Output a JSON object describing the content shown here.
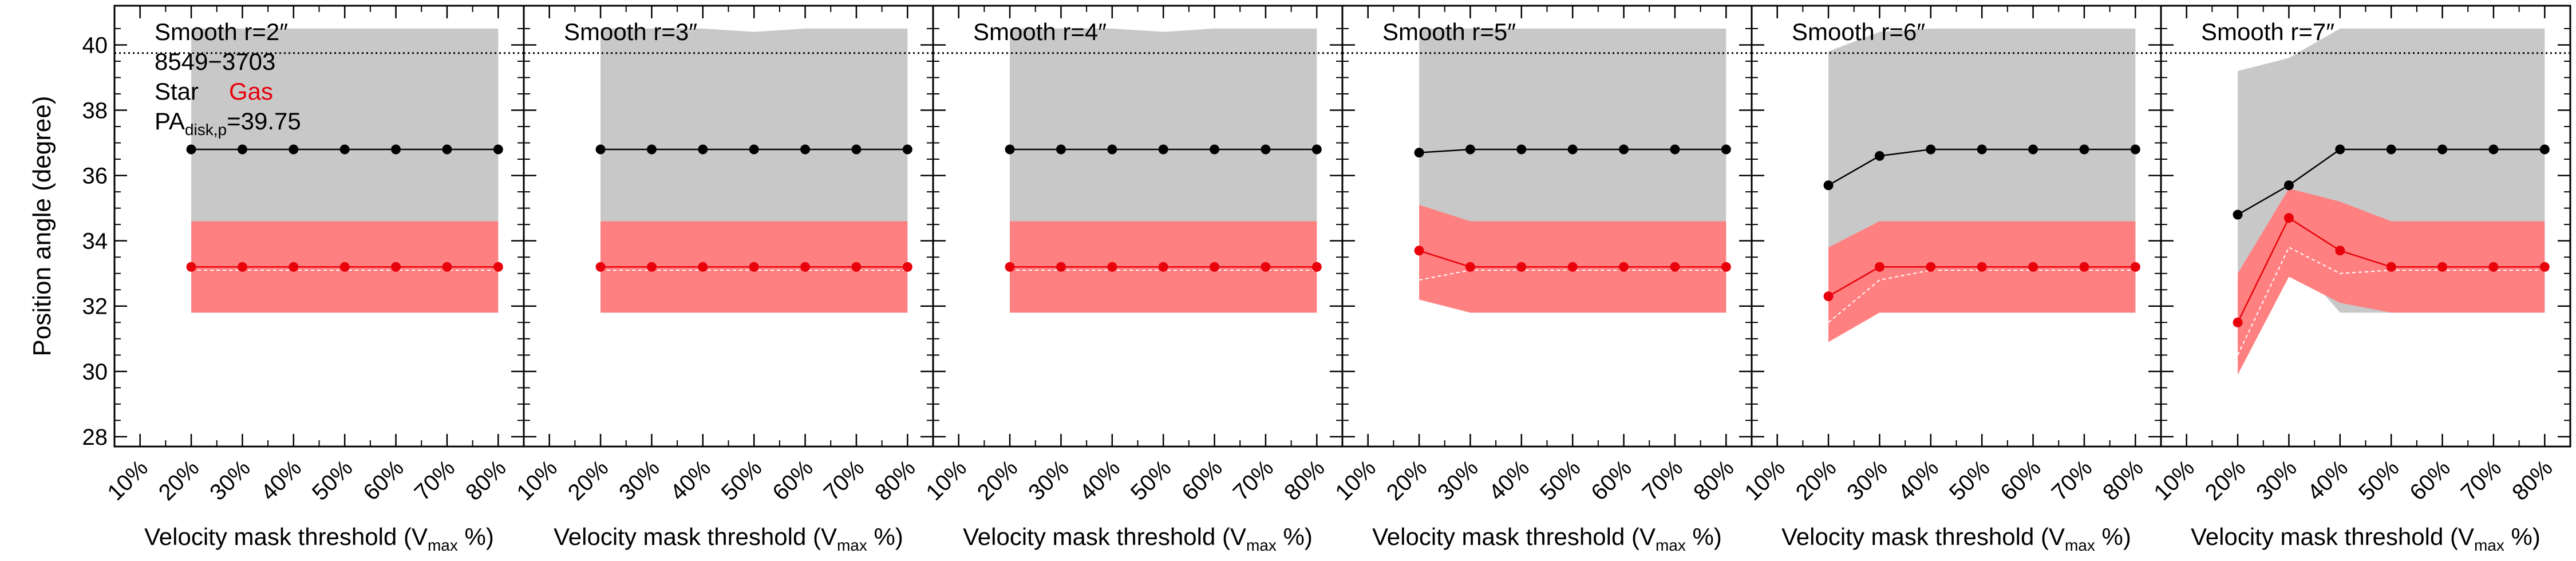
{
  "figure": {
    "ylabel": "Position angle (degree)",
    "xlabel_main": "Velocity mask threshold (V",
    "xlabel_sub": "max",
    "xlabel_tail": " %)",
    "legend": {
      "galaxy_id": "8549−3703",
      "star_label": "Star",
      "gas_label": "Gas",
      "pa_prefix": "PA",
      "pa_sub": "disk,p",
      "pa_value": "=39.75"
    },
    "x_tick_labels": [
      "10%",
      "20%",
      "30%",
      "40%",
      "50%",
      "60%",
      "70%",
      "80%"
    ],
    "y_tick_labels": [
      "28",
      "30",
      "32",
      "34",
      "36",
      "38",
      "40"
    ]
  },
  "colors": {
    "star": "#000000",
    "gas": "#e8000b",
    "star_band": "#c8c8c8",
    "gas_band": "#ff8080",
    "reference_line": "#000000",
    "gas_median_line": "#ffffff"
  },
  "chart_data": {
    "type": "line",
    "xlabel": "Velocity mask threshold (Vmax %)",
    "ylabel": "Position angle (degree)",
    "xlim": [
      5,
      85
    ],
    "ylim": [
      27.7,
      41.2
    ],
    "x_ticks": [
      10,
      20,
      30,
      40,
      50,
      60,
      70,
      80
    ],
    "y_ticks": [
      28,
      30,
      32,
      34,
      36,
      38,
      40
    ],
    "reference_line": {
      "y": 39.75,
      "style": "dotted",
      "label": "PA disk,p = 39.75"
    },
    "x": [
      20,
      30,
      40,
      50,
      60,
      70,
      80
    ],
    "panels": [
      {
        "title": "Smooth r=2″",
        "series": [
          {
            "name": "Star",
            "values": [
              36.8,
              36.8,
              36.8,
              36.8,
              36.8,
              36.8,
              36.8
            ]
          },
          {
            "name": "Gas",
            "values": [
              33.2,
              33.2,
              33.2,
              33.2,
              33.2,
              33.2,
              33.2
            ]
          }
        ],
        "star_band": {
          "lower": [
            31.8,
            31.8,
            31.8,
            31.8,
            31.8,
            31.8,
            31.8
          ],
          "upper": [
            40.5,
            40.5,
            40.5,
            40.5,
            40.5,
            40.5,
            40.5
          ]
        },
        "gas_band": {
          "lower": [
            31.8,
            31.8,
            31.8,
            31.8,
            31.8,
            31.8,
            31.8
          ],
          "upper": [
            34.6,
            34.6,
            34.6,
            34.6,
            34.6,
            34.6,
            34.6
          ]
        },
        "gas_median": [
          33.1,
          33.1,
          33.1,
          33.1,
          33.1,
          33.1,
          33.1
        ]
      },
      {
        "title": "Smooth r=3″",
        "series": [
          {
            "name": "Star",
            "values": [
              36.8,
              36.8,
              36.8,
              36.8,
              36.8,
              36.8,
              36.8
            ]
          },
          {
            "name": "Gas",
            "values": [
              33.2,
              33.2,
              33.2,
              33.2,
              33.2,
              33.2,
              33.2
            ]
          }
        ],
        "star_band": {
          "lower": [
            31.8,
            31.8,
            31.8,
            31.8,
            31.8,
            31.8,
            31.8
          ],
          "upper": [
            40.5,
            40.5,
            40.5,
            40.4,
            40.5,
            40.5,
            40.5
          ]
        },
        "gas_band": {
          "lower": [
            31.8,
            31.8,
            31.8,
            31.8,
            31.8,
            31.8,
            31.8
          ],
          "upper": [
            34.6,
            34.6,
            34.6,
            34.6,
            34.6,
            34.6,
            34.6
          ]
        },
        "gas_median": [
          33.1,
          33.1,
          33.1,
          33.1,
          33.1,
          33.1,
          33.1
        ]
      },
      {
        "title": "Smooth r=4″",
        "series": [
          {
            "name": "Star",
            "values": [
              36.8,
              36.8,
              36.8,
              36.8,
              36.8,
              36.8,
              36.8
            ]
          },
          {
            "name": "Gas",
            "values": [
              33.2,
              33.2,
              33.2,
              33.2,
              33.2,
              33.2,
              33.2
            ]
          }
        ],
        "star_band": {
          "lower": [
            31.8,
            31.8,
            31.8,
            31.8,
            31.8,
            31.8,
            31.8
          ],
          "upper": [
            40.5,
            40.5,
            40.5,
            40.4,
            40.5,
            40.5,
            40.5
          ]
        },
        "gas_band": {
          "lower": [
            31.8,
            31.8,
            31.8,
            31.8,
            31.8,
            31.8,
            31.8
          ],
          "upper": [
            34.6,
            34.6,
            34.6,
            34.6,
            34.6,
            34.6,
            34.6
          ]
        },
        "gas_median": [
          33.1,
          33.1,
          33.1,
          33.1,
          33.1,
          33.1,
          33.1
        ]
      },
      {
        "title": "Smooth r=5″",
        "series": [
          {
            "name": "Star",
            "values": [
              36.7,
              36.8,
              36.8,
              36.8,
              36.8,
              36.8,
              36.8
            ]
          },
          {
            "name": "Gas",
            "values": [
              33.7,
              33.2,
              33.2,
              33.2,
              33.2,
              33.2,
              33.2
            ]
          }
        ],
        "star_band": {
          "lower": [
            32.4,
            31.8,
            31.8,
            31.8,
            31.8,
            31.8,
            31.8
          ],
          "upper": [
            40.5,
            40.5,
            40.5,
            40.5,
            40.5,
            40.5,
            40.5
          ]
        },
        "gas_band": {
          "lower": [
            32.2,
            31.8,
            31.8,
            31.8,
            31.8,
            31.8,
            31.8
          ],
          "upper": [
            35.1,
            34.6,
            34.6,
            34.6,
            34.6,
            34.6,
            34.6
          ]
        },
        "gas_median": [
          32.8,
          33.1,
          33.1,
          33.1,
          33.1,
          33.1,
          33.1
        ]
      },
      {
        "title": "Smooth r=6″",
        "series": [
          {
            "name": "Star",
            "values": [
              35.7,
              36.6,
              36.8,
              36.8,
              36.8,
              36.8,
              36.8
            ]
          },
          {
            "name": "Gas",
            "values": [
              32.3,
              33.2,
              33.2,
              33.2,
              33.2,
              33.2,
              33.2
            ]
          }
        ],
        "star_band": {
          "lower": [
            31.2,
            31.8,
            31.8,
            31.8,
            31.8,
            31.8,
            31.8
          ],
          "upper": [
            39.8,
            40.4,
            40.5,
            40.5,
            40.5,
            40.5,
            40.5
          ]
        },
        "gas_band": {
          "lower": [
            30.9,
            31.8,
            31.8,
            31.8,
            31.8,
            31.8,
            31.8
          ],
          "upper": [
            33.8,
            34.6,
            34.6,
            34.6,
            34.6,
            34.6,
            34.6
          ]
        },
        "gas_median": [
          31.5,
          32.8,
          33.1,
          33.1,
          33.1,
          33.1,
          33.1
        ]
      },
      {
        "title": "Smooth r=7″",
        "series": [
          {
            "name": "Star",
            "values": [
              34.8,
              35.7,
              36.8,
              36.8,
              36.8,
              36.8,
              36.8
            ]
          },
          {
            "name": "Gas",
            "values": [
              31.5,
              34.7,
              33.7,
              33.2,
              33.2,
              33.2,
              33.2
            ]
          }
        ],
        "star_band": {
          "lower": [
            30.5,
            33.6,
            31.8,
            31.8,
            31.8,
            31.8,
            31.8
          ],
          "upper": [
            39.2,
            39.6,
            40.5,
            40.5,
            40.5,
            40.5,
            40.5
          ]
        },
        "gas_band": {
          "lower": [
            29.9,
            32.9,
            32.1,
            31.8,
            31.8,
            31.8,
            31.8
          ],
          "upper": [
            33.0,
            35.6,
            35.2,
            34.6,
            34.6,
            34.6,
            34.6
          ]
        },
        "gas_median": [
          30.5,
          33.8,
          33.0,
          33.1,
          33.1,
          33.1,
          33.1
        ]
      }
    ]
  }
}
